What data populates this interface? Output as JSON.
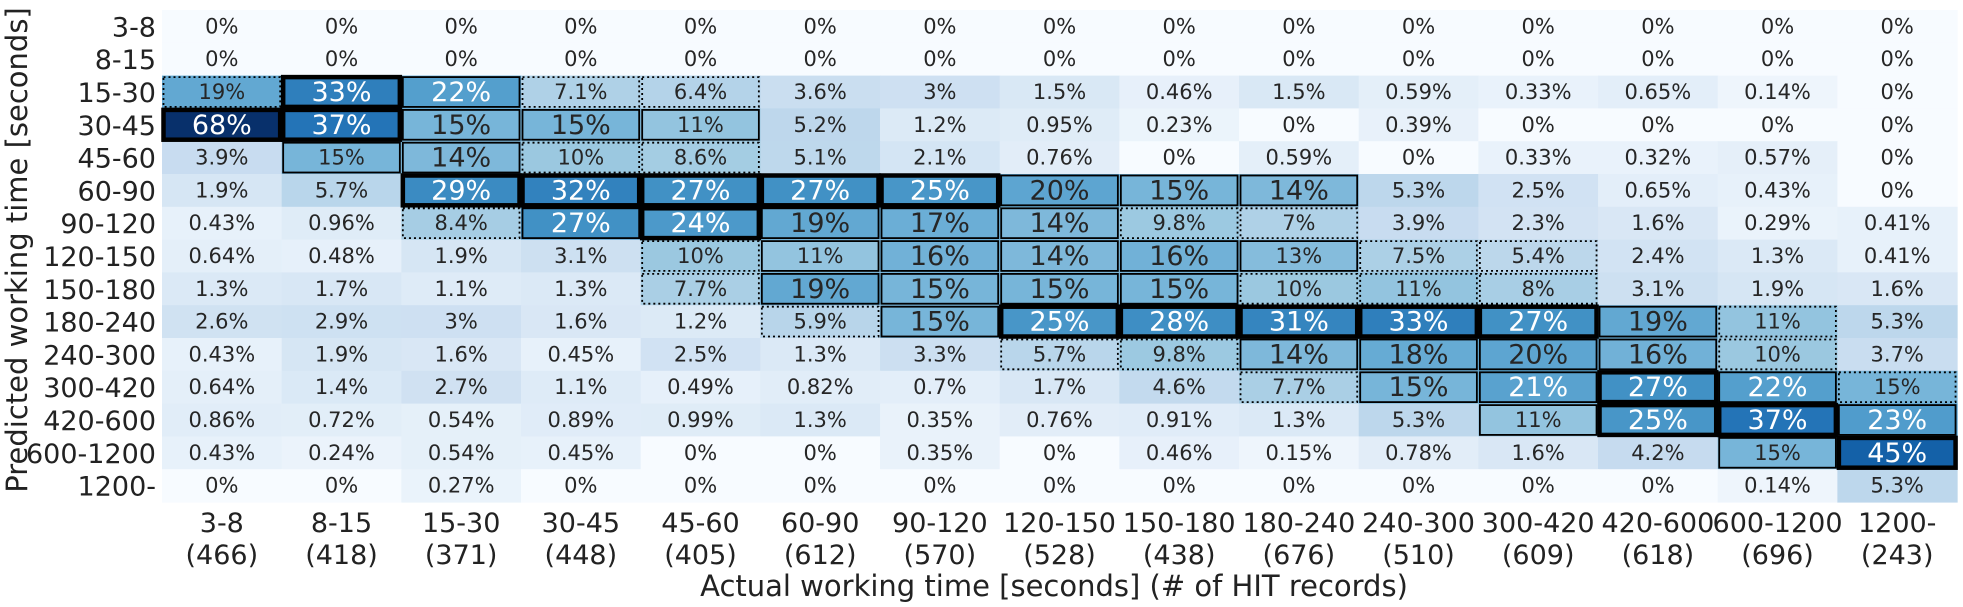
{
  "chart_data": {
    "type": "heatmap",
    "xlabel": "Actual working time [seconds]  (# of HIT records)",
    "ylabel": "Predicted working time [seconds]",
    "x_categories": [
      "3-8",
      "8-15",
      "15-30",
      "30-45",
      "45-60",
      "60-90",
      "90-120",
      "120-150",
      "150-180",
      "180-240",
      "240-300",
      "300-420",
      "420-600",
      "600-1200",
      "1200-"
    ],
    "x_counts": [
      "(466)",
      "(418)",
      "(371)",
      "(448)",
      "(405)",
      "(612)",
      "(570)",
      "(528)",
      "(438)",
      "(676)",
      "(510)",
      "(609)",
      "(618)",
      "(696)",
      "(243)"
    ],
    "y_categories": [
      "3-8",
      "8-15",
      "15-30",
      "30-45",
      "45-60",
      "60-90",
      "90-120",
      "120-150",
      "150-180",
      "180-240",
      "240-300",
      "300-420",
      "420-600",
      "600-1200",
      "1200-"
    ],
    "color_range": [
      0,
      68
    ],
    "colormap": "Blues",
    "cells": [
      [
        "0%",
        "0%",
        "0%",
        "0%",
        "0%",
        "0%",
        "0%",
        "0%",
        "0%",
        "0%",
        "0%",
        "0%",
        "0%",
        "0%",
        "0%"
      ],
      [
        "0%",
        "0%",
        "0%",
        "0%",
        "0%",
        "0%",
        "0%",
        "0%",
        "0%",
        "0%",
        "0%",
        "0%",
        "0%",
        "0%",
        "0%"
      ],
      [
        "19%",
        "33%",
        "22%",
        "7.1%",
        "6.4%",
        "3.6%",
        "3%",
        "1.5%",
        "0.46%",
        "1.5%",
        "0.59%",
        "0.33%",
        "0.65%",
        "0.14%",
        "0%"
      ],
      [
        "68%",
        "37%",
        "15%",
        "15%",
        "11%",
        "5.2%",
        "1.2%",
        "0.95%",
        "0.23%",
        "0%",
        "0.39%",
        "0%",
        "0%",
        "0%",
        "0%"
      ],
      [
        "3.9%",
        "15%",
        "14%",
        "10%",
        "8.6%",
        "5.1%",
        "2.1%",
        "0.76%",
        "0%",
        "0.59%",
        "0%",
        "0.33%",
        "0.32%",
        "0.57%",
        "0%"
      ],
      [
        "1.9%",
        "5.7%",
        "29%",
        "32%",
        "27%",
        "27%",
        "25%",
        "20%",
        "15%",
        "14%",
        "5.3%",
        "2.5%",
        "0.65%",
        "0.43%",
        "0%"
      ],
      [
        "0.43%",
        "0.96%",
        "8.4%",
        "27%",
        "24%",
        "19%",
        "17%",
        "14%",
        "9.8%",
        "7%",
        "3.9%",
        "2.3%",
        "1.6%",
        "0.29%",
        "0.41%"
      ],
      [
        "0.64%",
        "0.48%",
        "1.9%",
        "3.1%",
        "10%",
        "11%",
        "16%",
        "14%",
        "16%",
        "13%",
        "7.5%",
        "5.4%",
        "2.4%",
        "1.3%",
        "0.41%"
      ],
      [
        "1.3%",
        "1.7%",
        "1.1%",
        "1.3%",
        "7.7%",
        "19%",
        "15%",
        "15%",
        "15%",
        "10%",
        "11%",
        "8%",
        "3.1%",
        "1.9%",
        "1.6%"
      ],
      [
        "2.6%",
        "2.9%",
        "3%",
        "1.6%",
        "1.2%",
        "5.9%",
        "15%",
        "25%",
        "28%",
        "31%",
        "33%",
        "27%",
        "19%",
        "11%",
        "5.3%"
      ],
      [
        "0.43%",
        "1.9%",
        "1.6%",
        "0.45%",
        "2.5%",
        "1.3%",
        "3.3%",
        "5.7%",
        "9.8%",
        "14%",
        "18%",
        "20%",
        "16%",
        "10%",
        "3.7%"
      ],
      [
        "0.64%",
        "1.4%",
        "2.7%",
        "1.1%",
        "0.49%",
        "0.82%",
        "0.7%",
        "1.7%",
        "4.6%",
        "7.7%",
        "15%",
        "21%",
        "27%",
        "22%",
        "15%"
      ],
      [
        "0.86%",
        "0.72%",
        "0.54%",
        "0.89%",
        "0.99%",
        "1.3%",
        "0.35%",
        "0.76%",
        "0.91%",
        "1.3%",
        "5.3%",
        "11%",
        "25%",
        "37%",
        "23%"
      ],
      [
        "0.43%",
        "0.24%",
        "0.54%",
        "0.45%",
        "0%",
        "0%",
        "0.35%",
        "0%",
        "0.46%",
        "0.15%",
        "0.78%",
        "1.6%",
        "4.2%",
        "15%",
        "45%"
      ],
      [
        "0%",
        "0%",
        "0.27%",
        "0%",
        "0%",
        "0%",
        "0%",
        "0%",
        "0%",
        "0%",
        "0%",
        "0%",
        "0%",
        "0.14%",
        "5.3%"
      ]
    ]
  }
}
